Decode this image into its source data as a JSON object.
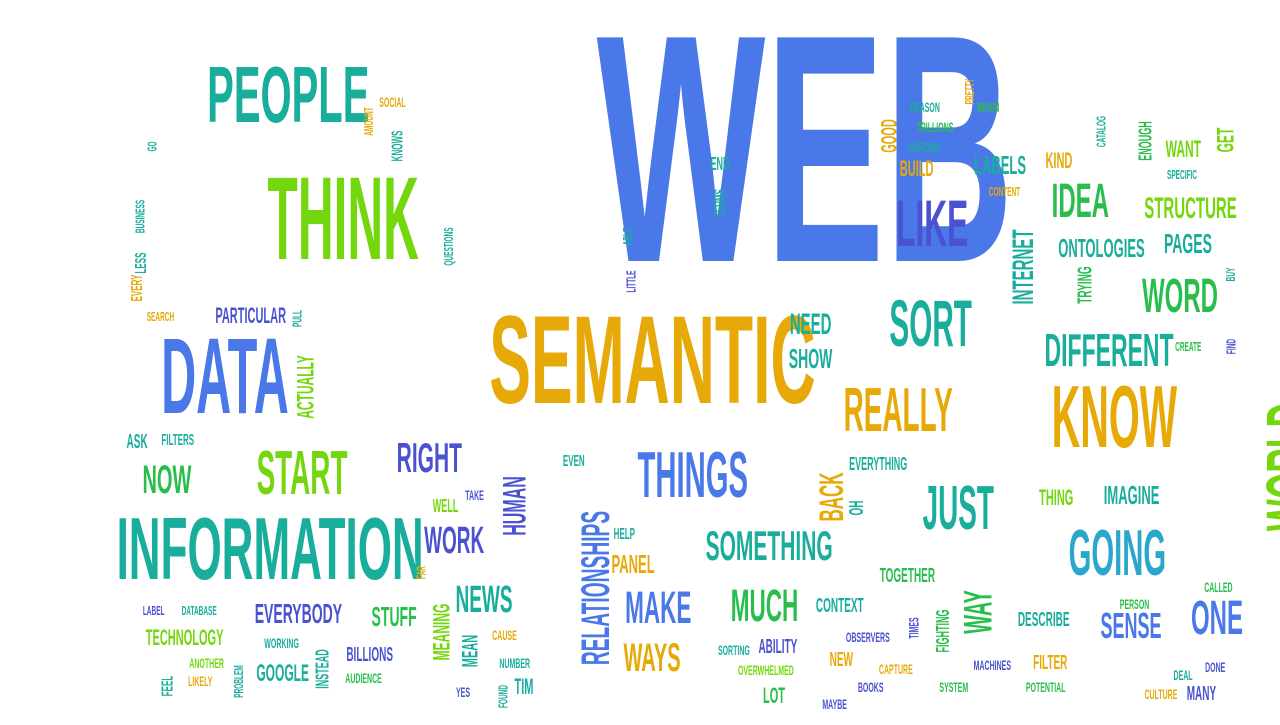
{
  "colors": {
    "blue": "#4a78e8",
    "teal": "#19ad9c",
    "green": "#29be4c",
    "lime": "#74d60c",
    "gold": "#e6a908",
    "indigo": "#4a52d0",
    "cyan": "#29a7cc"
  },
  "words": [
    {
      "text": "WEB",
      "color": "blue",
      "orientation": "horizontal"
    },
    {
      "text": "SEMANTIC",
      "color": "gold",
      "orientation": "horizontal"
    },
    {
      "text": "INFORMATION",
      "color": "teal",
      "orientation": "horizontal"
    },
    {
      "text": "THINK",
      "color": "lime",
      "orientation": "horizontal"
    },
    {
      "text": "PEOPLE",
      "color": "teal",
      "orientation": "horizontal"
    },
    {
      "text": "DATA",
      "color": "blue",
      "orientation": "horizontal"
    },
    {
      "text": "KNOW",
      "color": "gold",
      "orientation": "horizontal"
    },
    {
      "text": "WORLD",
      "color": "lime",
      "orientation": "vertical"
    },
    {
      "text": "THINGS",
      "color": "blue",
      "orientation": "horizontal"
    },
    {
      "text": "REALLY",
      "color": "gold",
      "orientation": "horizontal"
    },
    {
      "text": "JUST",
      "color": "teal",
      "orientation": "horizontal"
    },
    {
      "text": "GOING",
      "color": "cyan",
      "orientation": "horizontal"
    },
    {
      "text": "START",
      "color": "lime",
      "orientation": "horizontal"
    },
    {
      "text": "SORT",
      "color": "teal",
      "orientation": "horizontal"
    },
    {
      "text": "LIKE",
      "color": "indigo",
      "orientation": "horizontal"
    },
    {
      "text": "RELATIONSHIPS",
      "color": "blue",
      "orientation": "vertical"
    },
    {
      "text": "SOMETHING",
      "color": "teal",
      "orientation": "horizontal"
    },
    {
      "text": "MUCH",
      "color": "green",
      "orientation": "horizontal"
    },
    {
      "text": "MAKE",
      "color": "blue",
      "orientation": "horizontal"
    },
    {
      "text": "WAYS",
      "color": "gold",
      "orientation": "horizontal"
    },
    {
      "text": "DIFFERENT",
      "color": "teal",
      "orientation": "horizontal"
    },
    {
      "text": "WORD",
      "color": "green",
      "orientation": "horizontal"
    },
    {
      "text": "IDEA",
      "color": "green",
      "orientation": "horizontal"
    },
    {
      "text": "ONE",
      "color": "blue",
      "orientation": "horizontal"
    },
    {
      "text": "RIGHT",
      "color": "indigo",
      "orientation": "horizontal"
    },
    {
      "text": "NOW",
      "color": "green",
      "orientation": "horizontal"
    },
    {
      "text": "WORK",
      "color": "indigo",
      "orientation": "horizontal"
    },
    {
      "text": "HUMAN",
      "color": "indigo",
      "orientation": "vertical"
    },
    {
      "text": "NEWS",
      "color": "teal",
      "orientation": "horizontal"
    },
    {
      "text": "WAY",
      "color": "green",
      "orientation": "vertical"
    },
    {
      "text": "SENSE",
      "color": "blue",
      "orientation": "horizontal"
    },
    {
      "text": "BACK",
      "color": "gold",
      "orientation": "vertical"
    },
    {
      "text": "INTERNET",
      "color": "teal",
      "orientation": "vertical"
    },
    {
      "text": "STRUCTURE",
      "color": "lime",
      "orientation": "horizontal"
    },
    {
      "text": "ONTOLOGIES",
      "color": "teal",
      "orientation": "horizontal"
    },
    {
      "text": "PAGES",
      "color": "teal",
      "orientation": "horizontal"
    },
    {
      "text": "EVERYBODY",
      "color": "indigo",
      "orientation": "horizontal"
    },
    {
      "text": "STUFF",
      "color": "green",
      "orientation": "horizontal"
    },
    {
      "text": "IMAGINE",
      "color": "teal",
      "orientation": "horizontal"
    },
    {
      "text": "LABELS",
      "color": "teal",
      "orientation": "horizontal"
    },
    {
      "text": "NEED",
      "color": "teal",
      "orientation": "horizontal"
    },
    {
      "text": "SHOW",
      "color": "teal",
      "orientation": "horizontal"
    },
    {
      "text": "ACTUALLY",
      "color": "lime",
      "orientation": "vertical"
    },
    {
      "text": "MEANING",
      "color": "lime",
      "orientation": "vertical"
    },
    {
      "text": "PANEL",
      "color": "gold",
      "orientation": "horizontal"
    },
    {
      "text": "WANT",
      "color": "lime",
      "orientation": "horizontal"
    },
    {
      "text": "GET",
      "color": "lime",
      "orientation": "vertical"
    },
    {
      "text": "TRYING",
      "color": "green",
      "orientation": "vertical"
    },
    {
      "text": "EVERYTHING",
      "color": "teal",
      "orientation": "horizontal"
    },
    {
      "text": "THING",
      "color": "lime",
      "orientation": "horizontal"
    },
    {
      "text": "OH",
      "color": "teal",
      "orientation": "vertical"
    },
    {
      "text": "TOGETHER",
      "color": "green",
      "orientation": "horizontal"
    },
    {
      "text": "CONTEXT",
      "color": "teal",
      "orientation": "horizontal"
    },
    {
      "text": "FIGHTING",
      "color": "green",
      "orientation": "vertical"
    },
    {
      "text": "DESCRIBE",
      "color": "teal",
      "orientation": "horizontal"
    },
    {
      "text": "FILTER",
      "color": "gold",
      "orientation": "horizontal"
    },
    {
      "text": "POTENTIAL",
      "color": "green",
      "orientation": "horizontal"
    },
    {
      "text": "MANY",
      "color": "indigo",
      "orientation": "horizontal"
    },
    {
      "text": "ABILITY",
      "color": "indigo",
      "orientation": "horizontal"
    },
    {
      "text": "LOT",
      "color": "green",
      "orientation": "horizontal"
    },
    {
      "text": "NEW",
      "color": "gold",
      "orientation": "horizontal"
    },
    {
      "text": "TIMES",
      "color": "indigo",
      "orientation": "vertical"
    },
    {
      "text": "OBSERVERS",
      "color": "indigo",
      "orientation": "horizontal"
    },
    {
      "text": "BOOKS",
      "color": "indigo",
      "orientation": "horizontal"
    },
    {
      "text": "CAPTURE",
      "color": "gold",
      "orientation": "horizontal"
    },
    {
      "text": "SYSTEM",
      "color": "green",
      "orientation": "horizontal"
    },
    {
      "text": "MACHINES",
      "color": "indigo",
      "orientation": "horizontal"
    },
    {
      "text": "CULTURE",
      "color": "gold",
      "orientation": "horizontal"
    },
    {
      "text": "DEAL",
      "color": "teal",
      "orientation": "horizontal"
    },
    {
      "text": "DONE",
      "color": "indigo",
      "orientation": "horizontal"
    },
    {
      "text": "CALLED",
      "color": "green",
      "orientation": "horizontal"
    },
    {
      "text": "PERSON",
      "color": "green",
      "orientation": "horizontal"
    },
    {
      "text": "SORTING",
      "color": "teal",
      "orientation": "horizontal"
    },
    {
      "text": "OVERWHELMED",
      "color": "lime",
      "orientation": "horizontal"
    },
    {
      "text": "MAYBE",
      "color": "indigo",
      "orientation": "horizontal"
    },
    {
      "text": "HELP",
      "color": "teal",
      "orientation": "horizontal"
    },
    {
      "text": "EVEN",
      "color": "teal",
      "orientation": "horizontal"
    },
    {
      "text": "WELL",
      "color": "lime",
      "orientation": "horizontal"
    },
    {
      "text": "TAKE",
      "color": "indigo",
      "orientation": "horizontal"
    },
    {
      "text": "FAR",
      "color": "gold",
      "orientation": "vertical"
    },
    {
      "text": "CAUSE",
      "color": "gold",
      "orientation": "horizontal"
    },
    {
      "text": "NUMBER",
      "color": "teal",
      "orientation": "horizontal"
    },
    {
      "text": "TIM",
      "color": "teal",
      "orientation": "horizontal"
    },
    {
      "text": "MEAN",
      "color": "teal",
      "orientation": "vertical"
    },
    {
      "text": "YES",
      "color": "indigo",
      "orientation": "horizontal"
    },
    {
      "text": "FOUND",
      "color": "teal",
      "orientation": "vertical"
    },
    {
      "text": "BILLIONS",
      "color": "indigo",
      "orientation": "horizontal"
    },
    {
      "text": "AUDIENCE",
      "color": "green",
      "orientation": "horizontal"
    },
    {
      "text": "INSTEAD",
      "color": "teal",
      "orientation": "vertical"
    },
    {
      "text": "GOOGLE",
      "color": "teal",
      "orientation": "horizontal"
    },
    {
      "text": "WORKING",
      "color": "teal",
      "orientation": "horizontal"
    },
    {
      "text": "TECHNOLOGY",
      "color": "lime",
      "orientation": "horizontal"
    },
    {
      "text": "LABEL",
      "color": "indigo",
      "orientation": "horizontal"
    },
    {
      "text": "DATABASE",
      "color": "teal",
      "orientation": "horizontal"
    },
    {
      "text": "ANOTHER",
      "color": "lime",
      "orientation": "horizontal"
    },
    {
      "text": "LIKELY",
      "color": "gold",
      "orientation": "horizontal"
    },
    {
      "text": "PROBLEM",
      "color": "teal",
      "orientation": "vertical"
    },
    {
      "text": "FEEL",
      "color": "teal",
      "orientation": "vertical"
    },
    {
      "text": "ASK",
      "color": "teal",
      "orientation": "horizontal"
    },
    {
      "text": "FILTERS",
      "color": "teal",
      "orientation": "horizontal"
    },
    {
      "text": "SEARCH",
      "color": "gold",
      "orientation": "horizontal"
    },
    {
      "text": "PARTICULAR",
      "color": "indigo",
      "orientation": "horizontal"
    },
    {
      "text": "PULL",
      "color": "teal",
      "orientation": "vertical"
    },
    {
      "text": "EVERY",
      "color": "gold",
      "orientation": "vertical"
    },
    {
      "text": "LESS",
      "color": "teal",
      "orientation": "vertical"
    },
    {
      "text": "BUSINESS",
      "color": "teal",
      "orientation": "vertical"
    },
    {
      "text": "GO",
      "color": "teal",
      "orientation": "vertical"
    },
    {
      "text": "AMOUNT",
      "color": "gold",
      "orientation": "vertical"
    },
    {
      "text": "SOCIAL",
      "color": "gold",
      "orientation": "horizontal"
    },
    {
      "text": "KNOWS",
      "color": "teal",
      "orientation": "vertical"
    },
    {
      "text": "QUESTIONS",
      "color": "teal",
      "orientation": "vertical"
    },
    {
      "text": "LITTLE",
      "color": "indigo",
      "orientation": "vertical"
    },
    {
      "text": "ABLE",
      "color": "teal",
      "orientation": "vertical"
    },
    {
      "text": "TERMS",
      "color": "teal",
      "orientation": "vertical"
    },
    {
      "text": "END",
      "color": "teal",
      "orientation": "horizontal"
    },
    {
      "text": "GOOD",
      "color": "gold",
      "orientation": "vertical"
    },
    {
      "text": "REASON",
      "color": "teal",
      "orientation": "horizontal"
    },
    {
      "text": "PRETTY",
      "color": "gold",
      "orientation": "vertical"
    },
    {
      "text": "BRAIN",
      "color": "green",
      "orientation": "horizontal"
    },
    {
      "text": "TRILLIONS",
      "color": "green",
      "orientation": "horizontal"
    },
    {
      "text": "ARROWS",
      "color": "teal",
      "orientation": "horizontal"
    },
    {
      "text": "BUILD",
      "color": "gold",
      "orientation": "horizontal"
    },
    {
      "text": "CONTENT",
      "color": "gold",
      "orientation": "horizontal"
    },
    {
      "text": "KIND",
      "color": "gold",
      "orientation": "horizontal"
    },
    {
      "text": "CATALOG",
      "color": "teal",
      "orientation": "vertical"
    },
    {
      "text": "ENOUGH",
      "color": "green",
      "orientation": "vertical"
    },
    {
      "text": "SPECIFIC",
      "color": "teal",
      "orientation": "horizontal"
    },
    {
      "text": "BUY",
      "color": "teal",
      "orientation": "vertical"
    },
    {
      "text": "CREATE",
      "color": "green",
      "orientation": "horizontal"
    },
    {
      "text": "FIND",
      "color": "indigo",
      "orientation": "vertical"
    }
  ]
}
